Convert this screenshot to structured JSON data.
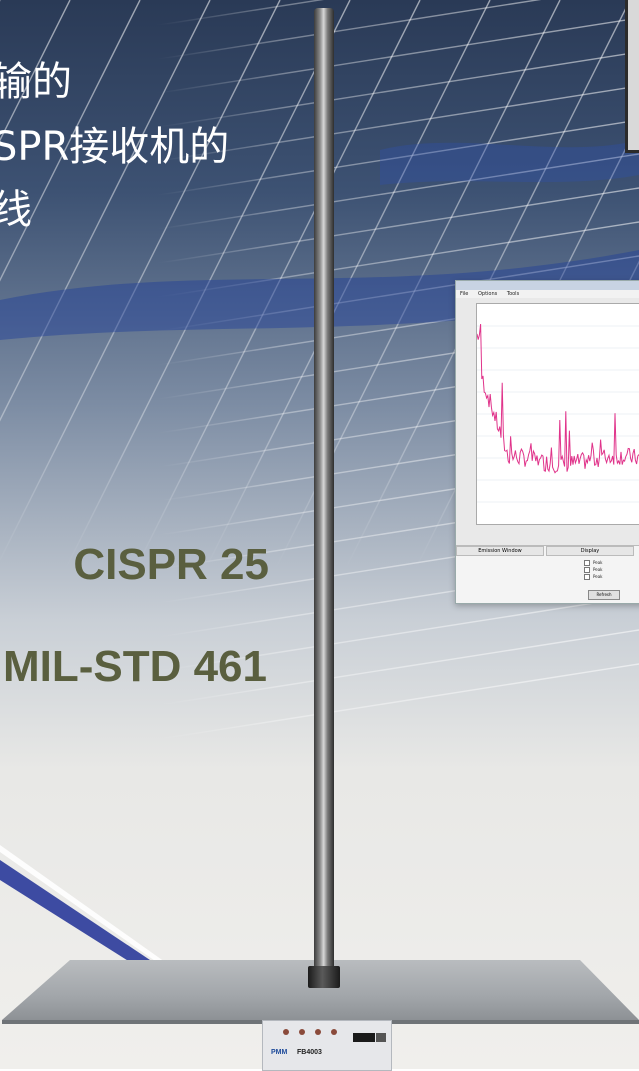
{
  "headline": {
    "line1": "输的",
    "line2": "SPR接收机的",
    "line3": "线"
  },
  "standards": {
    "cispr": "CISPR 25",
    "mil": "MIL-STD 461"
  },
  "screenshot_window": {
    "menu": [
      "File",
      "Options",
      "Tools"
    ],
    "tabs": [
      "Emission Window",
      "Display"
    ],
    "checkboxes": [
      "Peak",
      "Peak",
      "Peak"
    ],
    "button": "Refresh"
  },
  "device": {
    "brand": "PMM",
    "model": "FB4003"
  },
  "colors": {
    "trace": "#e0338a",
    "standard_text": "#5a5f3f"
  }
}
